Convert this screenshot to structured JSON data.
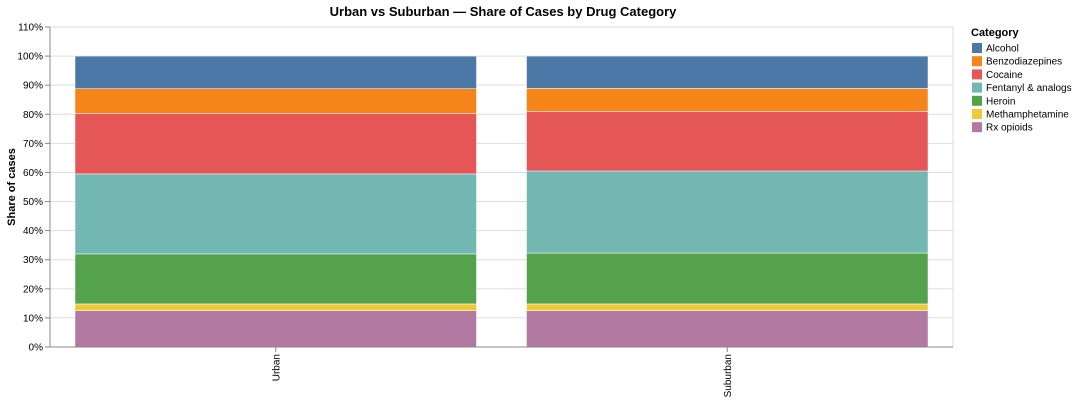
{
  "chart_data": {
    "type": "bar",
    "stacked": true,
    "normalized": true,
    "title": "Urban vs Suburban — Share of Cases by Drug Category",
    "xlabel": "",
    "ylabel": "Share of cases",
    "ylim": [
      0,
      1.1
    ],
    "y_ticks": [
      "0%",
      "10%",
      "20%",
      "30%",
      "40%",
      "50%",
      "60%",
      "70%",
      "80%",
      "90%",
      "100%",
      "110%"
    ],
    "grid": true,
    "categories": [
      "Urban",
      "Suburban"
    ],
    "legend": {
      "title": "Category",
      "position": "right"
    },
    "series": [
      {
        "name": "Rx opioids",
        "color": "#b279a2",
        "values": [
          0.125,
          0.125
        ]
      },
      {
        "name": "Methamphetamine",
        "color": "#eeca3b",
        "values": [
          0.023,
          0.023
        ]
      },
      {
        "name": "Heroin",
        "color": "#54a24b",
        "values": [
          0.172,
          0.175
        ]
      },
      {
        "name": "Fentanyl & analogs",
        "color": "#72b7b2",
        "values": [
          0.275,
          0.282
        ]
      },
      {
        "name": "Cocaine",
        "color": "#e45756",
        "values": [
          0.208,
          0.205
        ]
      },
      {
        "name": "Benzodiazepines",
        "color": "#f58518",
        "values": [
          0.085,
          0.079
        ]
      },
      {
        "name": "Alcohol",
        "color": "#4c78a8",
        "values": [
          0.112,
          0.111
        ]
      }
    ],
    "legend_order": [
      "Alcohol",
      "Benzodiazepines",
      "Cocaine",
      "Fentanyl & analogs",
      "Heroin",
      "Methamphetamine",
      "Rx opioids"
    ]
  }
}
